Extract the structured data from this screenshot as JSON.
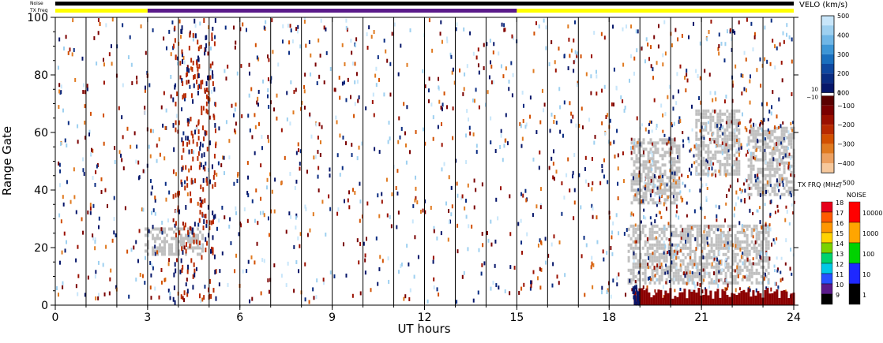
{
  "chart_data": {
    "type": "heatmap",
    "xlabel": "UT hours",
    "ylabel": "Range Gate",
    "xlim": [
      0,
      24
    ],
    "ylim": [
      0,
      100
    ],
    "x_ticks": [
      "0",
      "3",
      "6",
      "9",
      "12",
      "15",
      "18",
      "21",
      "24"
    ],
    "x_tick_values": [
      0,
      3,
      6,
      9,
      12,
      15,
      18,
      21,
      24
    ],
    "y_ticks": [
      "0",
      "20",
      "40",
      "60",
      "80",
      "100"
    ],
    "y_tick_values": [
      0,
      20,
      40,
      60,
      80,
      100
    ],
    "scan_lines_hours": [
      1,
      2,
      3,
      4,
      5,
      6,
      7,
      8,
      9,
      10,
      11,
      12,
      13,
      14,
      15,
      16,
      17,
      18,
      19,
      20,
      21,
      22,
      23
    ],
    "status_bars": {
      "noise_label": "Noise",
      "txfreq_label": "TX Freq",
      "noise_color": "#000000",
      "txfreq_segments": [
        {
          "start": 0,
          "end": 3,
          "color": "#ffff00"
        },
        {
          "start": 3,
          "end": 15,
          "color": "#5a1a8a"
        },
        {
          "start": 15,
          "end": 24,
          "color": "#ffff00"
        }
      ]
    },
    "ground_scatter_color": "#c0c0c0",
    "ground_scatter_regions": [
      {
        "x": [
          18.7,
          20.3
        ],
        "y": [
          35,
          58
        ]
      },
      {
        "x": [
          20.8,
          22.2
        ],
        "y": [
          45,
          68
        ]
      },
      {
        "x": [
          22.5,
          24
        ],
        "y": [
          38,
          62
        ]
      },
      {
        "x": [
          18.6,
          23.2
        ],
        "y": [
          8,
          28
        ]
      },
      {
        "x": [
          2.9,
          4.8
        ],
        "y": [
          18,
          27
        ]
      }
    ],
    "near_range_band": {
      "x": [
        18.8,
        24
      ],
      "y": [
        0,
        6
      ],
      "color": "#8b0000"
    },
    "velocity_scale": {
      "title": "VELO (km/s)",
      "labels": [
        "500",
        "400",
        "300",
        "200",
        "100",
        "0",
        "10",
        "−10",
        "−100",
        "−200",
        "−300",
        "−400",
        "−500"
      ],
      "positive_colors": [
        "#c8e6fa",
        "#9ed0f0",
        "#6fb6e6",
        "#3d96d6",
        "#1a6fbe",
        "#0f48a0",
        "#0a2c82",
        "#06166a"
      ],
      "negative_colors": [
        "#5a0000",
        "#7a0000",
        "#9a1000",
        "#b82a00",
        "#d25000",
        "#e07a20",
        "#eca060",
        "#f6c89c"
      ]
    },
    "txfreq_scale": {
      "title": "TX FRQ (MHz)",
      "labels": [
        "18",
        "17",
        "16",
        "15",
        "14",
        "13",
        "12",
        "11",
        "10",
        "9"
      ],
      "colors": [
        "#e6001a",
        "#ff5a00",
        "#ff9600",
        "#ffd200",
        "#7ad200",
        "#00d26e",
        "#00c8e6",
        "#2850ff",
        "#5a1a8a",
        "#000000"
      ]
    },
    "noise_scale": {
      "title": "NOISE",
      "labels": [
        "10000",
        "1000",
        "100",
        "10",
        "1"
      ],
      "colors": [
        "#ff0000",
        "#ffa500",
        "#00d200",
        "#1e28ff",
        "#000000"
      ]
    }
  }
}
